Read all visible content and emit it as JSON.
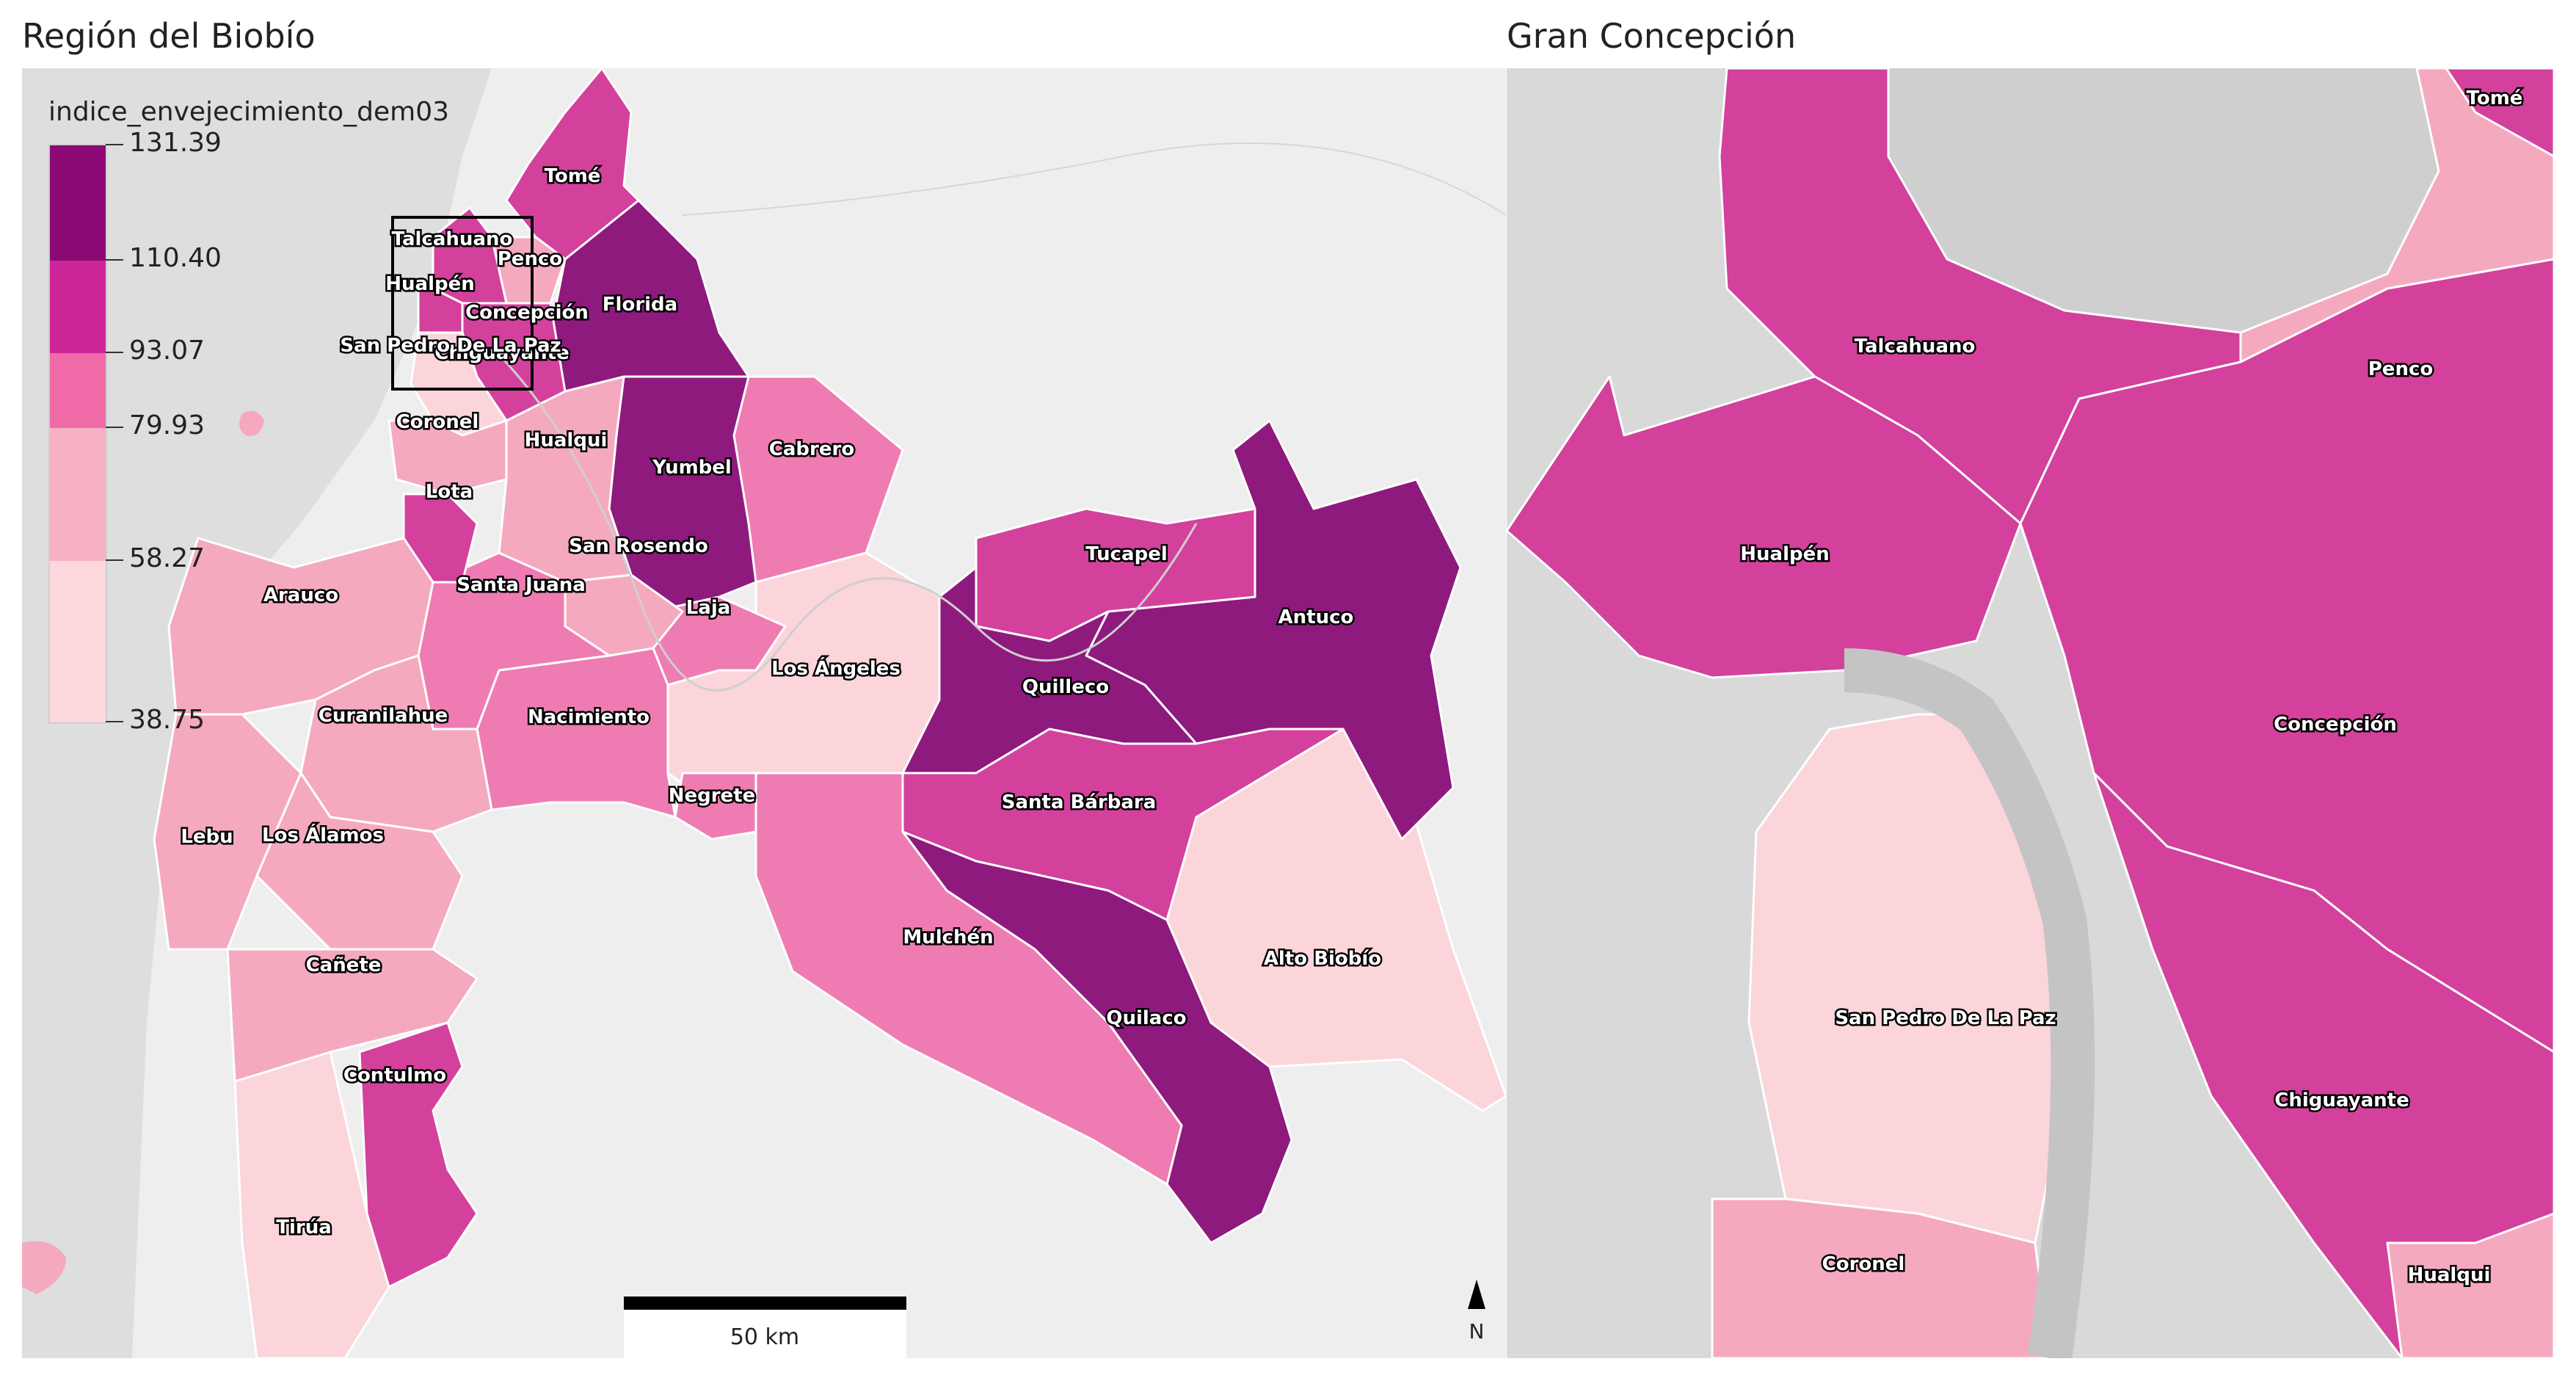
{
  "titles": {
    "left": "Región del Biobío",
    "right": "Gran Concepción"
  },
  "legend": {
    "title": "indice_envejecimiento_dem03",
    "ticks": [
      "131.39",
      "110.40",
      "93.07",
      "79.93",
      "58.27",
      "38.75"
    ],
    "colors": [
      "#8b0a76",
      "#cc2699",
      "#f06aa8",
      "#f7b1c4",
      "#fcd7db"
    ]
  },
  "scalebar": {
    "label": "50 km"
  },
  "north": {
    "label": "N"
  },
  "palette": {
    "c1": "#fbd5da",
    "c2": "#f5a9bf",
    "c3": "#ee7cb2",
    "c4": "#d3419d",
    "c5": "#8e1a7e",
    "background": "#eeeeee",
    "water": "#dcdcdc"
  },
  "left_labels": {
    "tome": "Tomé",
    "talcahuano": "Talcahuano",
    "penco": "Penco",
    "hualpen": "Hualpén",
    "florida": "Florida",
    "concepcion": "Concepción",
    "sanpedro": "San Pedro De La Paz",
    "chiguayante": "Chiguayante",
    "coronel": "Coronel",
    "hualqui": "Hualqui",
    "yumbel": "Yumbel",
    "cabrero": "Cabrero",
    "lota": "Lota",
    "sanrosendo": "San Rosendo",
    "tucapel": "Tucapel",
    "santajuana": "Santa Juana",
    "arauco": "Arauco",
    "laja": "Laja",
    "antuco": "Antuco",
    "losangeles": "Los Ángeles",
    "quilleco": "Quilleco",
    "curanilahue": "Curanilahue",
    "nacimiento": "Nacimiento",
    "negrete": "Negrete",
    "santabarbara": "Santa Bárbara",
    "lebu": "Lebu",
    "losalamos": "Los Álamos",
    "mulchen": "Mulchén",
    "altobiobio": "Alto Biobío",
    "canete": "Cañete",
    "quilaco": "Quilaco",
    "contulmo": "Contulmo",
    "tirua": "Tirúa"
  },
  "right_labels": {
    "tome": "Tomé",
    "talcahuano": "Talcahuano",
    "penco": "Penco",
    "hualpen": "Hualpén",
    "concepcion": "Concepción",
    "sanpedro": "San Pedro De La Paz",
    "chiguayante": "Chiguayante",
    "coronel": "Coronel",
    "hualqui": "Hualqui"
  }
}
